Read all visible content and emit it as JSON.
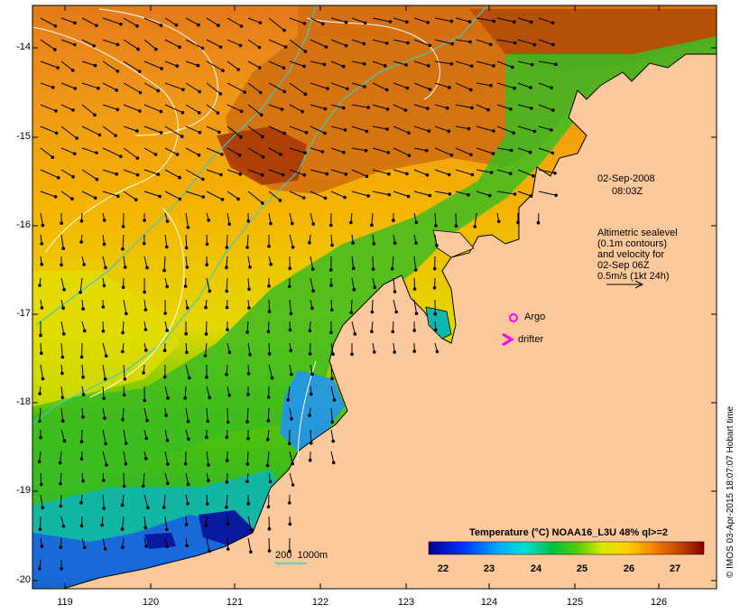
{
  "map": {
    "lat_ticks": [
      "-14",
      "-15",
      "-16",
      "-17",
      "-18",
      "-19",
      "-20"
    ],
    "lon_ticks": [
      "119",
      "120",
      "121",
      "122",
      "123",
      "124",
      "125",
      "126"
    ],
    "date_line1": "02-Sep-2008",
    "date_line2": "08:03Z",
    "altimetry_note": [
      "Altimetric sealevel",
      "(0.1m contours)",
      "and velocity for",
      "02-Sep 06Z",
      "0.5m/s (1kt 24h)"
    ],
    "argo_label": "Argo",
    "drifter_label": "drifter",
    "isobath_label": "200  1000m",
    "colorbar_title": "Temperature (°C) NOAA16_L3U 48% ql>=2",
    "colorbar_ticks": [
      "22",
      "23",
      "24",
      "25",
      "26",
      "27"
    ],
    "credit": "© IMOS 03-Apr-2015 18:07:07 Hobart time",
    "colors": {
      "land": "#fbc99b",
      "isobath_200": "#ffffff",
      "isobath_1000": "#3fc9c9",
      "argo_marker": "#ff00ff",
      "drifter_marker": "#ff00ff"
    }
  }
}
